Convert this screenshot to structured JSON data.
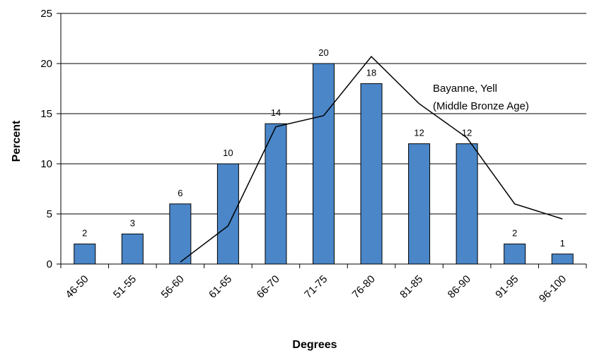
{
  "chart_data": {
    "type": "bar",
    "xlabel": "Degrees",
    "ylabel": "Percent",
    "ylim": [
      0,
      25
    ],
    "yticks": [
      0,
      5,
      10,
      15,
      20,
      25
    ],
    "grid": true,
    "categories": [
      "46-50",
      "51-55",
      "56-60",
      "61-65",
      "66-70",
      "71-75",
      "76-80",
      "81-85",
      "86-90",
      "91-95",
      "96-100"
    ],
    "series": [
      {
        "type": "bar",
        "values": [
          2,
          3,
          6,
          10,
          14,
          20,
          18,
          12,
          12,
          2,
          1
        ],
        "data_labels": [
          "2",
          "3",
          "6",
          "10",
          "14",
          "20",
          "18",
          "12",
          "12",
          "2",
          "1"
        ]
      },
      {
        "type": "line",
        "values": [
          null,
          null,
          0.2,
          3.8,
          13.7,
          14.8,
          20.7,
          16.0,
          12.6,
          6.0,
          4.5
        ]
      }
    ],
    "annotations": [
      "Bayanne, Yell",
      "(Middle Bronze Age)"
    ],
    "colors": {
      "bar": "#4a86c8",
      "bar_edge": "#000000",
      "line": "#000000",
      "grid": "#000000"
    }
  }
}
